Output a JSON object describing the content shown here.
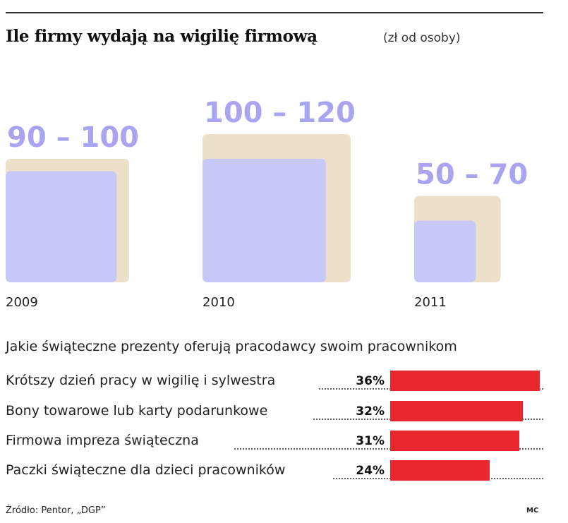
{
  "title": "Ile firmy wydają na wigilię firmową",
  "unit": "(zł od osoby)",
  "chart_data": [
    {
      "type": "bar",
      "categories": [
        "2009",
        "2010",
        "2011"
      ],
      "series": [
        {
          "values": [
            90,
            100,
            50
          ]
        },
        {
          "values": [
            100,
            120,
            70
          ]
        }
      ],
      "range_labels": [
        "90 – 100",
        "100 – 120",
        "50 – 70"
      ],
      "colors": {
        "lower": "#c8c8f8",
        "upper": "#ede0c8",
        "label": "#a9a3f0"
      }
    },
    {
      "type": "bar",
      "title": "Jakie świąteczne prezenty oferują pracodawcy swoim pracownikom",
      "categories": [
        "Krótszy dzień pracy w wigilię i sylwestra",
        "Bony towarowe lub karty podarunkowe",
        "Firmowa impreza świąteczna",
        "Paczki świąteczne dla dzieci pracowników"
      ],
      "values": [
        36,
        32,
        31,
        24
      ],
      "value_labels": [
        "36%",
        "32%",
        "31%",
        "24%"
      ],
      "colors": {
        "bar": "#e8282d"
      }
    }
  ],
  "source": "Źródło: Pentor, „DGP”",
  "credit": "MC"
}
